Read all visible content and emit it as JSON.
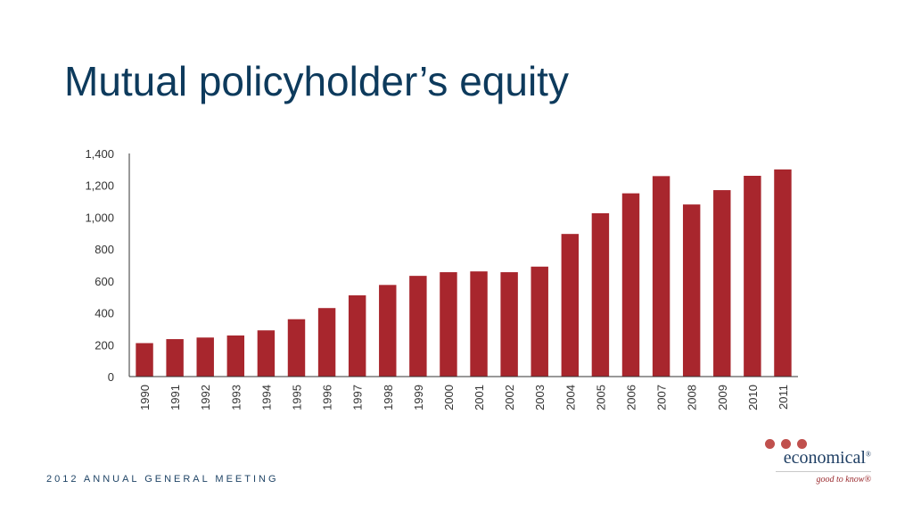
{
  "title": "Mutual policyholder’s equity",
  "footer": "2012 ANNUAL GENERAL MEETING",
  "logo": {
    "name": "economical",
    "reg": "®",
    "tagline": "good to know®"
  },
  "colors": {
    "bar": "#a8262d",
    "title": "#0d3a5c",
    "dots": "#c0504d"
  },
  "chart_data": {
    "type": "bar",
    "title": "",
    "xlabel": "",
    "ylabel": "",
    "ylim": [
      0,
      1400
    ],
    "y_ticks": [
      0,
      200,
      400,
      600,
      800,
      1000,
      1200,
      1400
    ],
    "y_tick_labels": [
      "0",
      "200",
      "400",
      "600",
      "800",
      "1,000",
      "1,200",
      "1,400"
    ],
    "grid": false,
    "categories": [
      "1990",
      "1991",
      "1992",
      "1993",
      "1994",
      "1995",
      "1996",
      "1997",
      "1998",
      "1999",
      "2000",
      "2001",
      "2002",
      "2003",
      "2004",
      "2005",
      "2006",
      "2007",
      "2008",
      "2009",
      "2010",
      "2011"
    ],
    "values": [
      210,
      235,
      245,
      258,
      290,
      360,
      430,
      510,
      575,
      632,
      655,
      660,
      655,
      690,
      895,
      1025,
      1150,
      1258,
      1080,
      1170,
      1260,
      1300
    ]
  }
}
